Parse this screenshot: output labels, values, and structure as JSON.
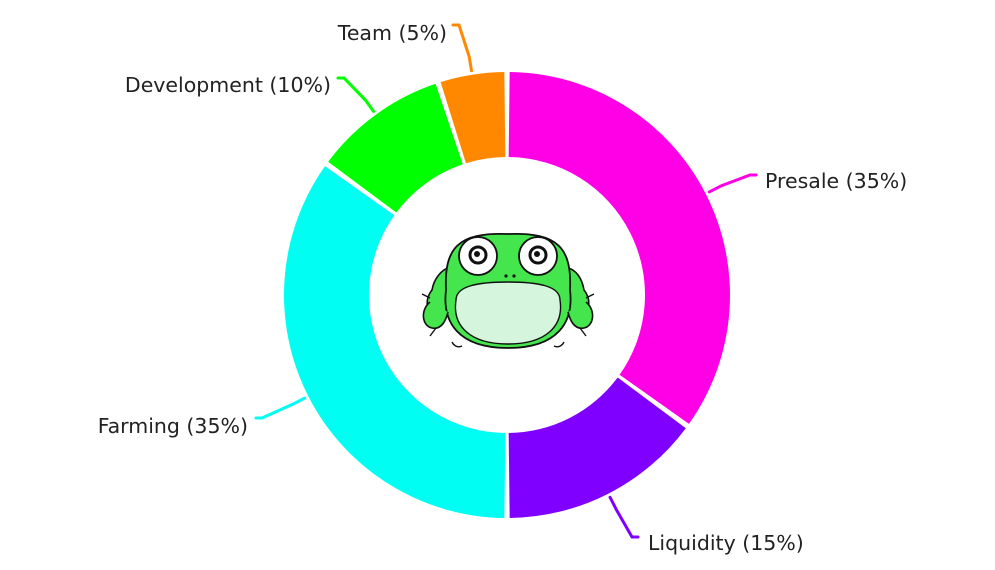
{
  "chart_data": {
    "type": "pie",
    "donut": true,
    "legend": "none",
    "slices": [
      {
        "label": "Presale (35%)",
        "value": 35,
        "color": "#ff00e6"
      },
      {
        "label": "Liquidity (15%)",
        "value": 15,
        "color": "#8000ff"
      },
      {
        "label": "Farming (35%)",
        "value": 35,
        "color": "#00fff2"
      },
      {
        "label": "Development (10%)",
        "value": 10,
        "color": "#00ff00"
      },
      {
        "label": "Team (5%)",
        "value": 5,
        "color": "#ff8800"
      }
    ]
  },
  "center_image": {
    "icon": "frog-icon",
    "body_color": "#44e54d",
    "belly_color": "#d6f5dd"
  }
}
